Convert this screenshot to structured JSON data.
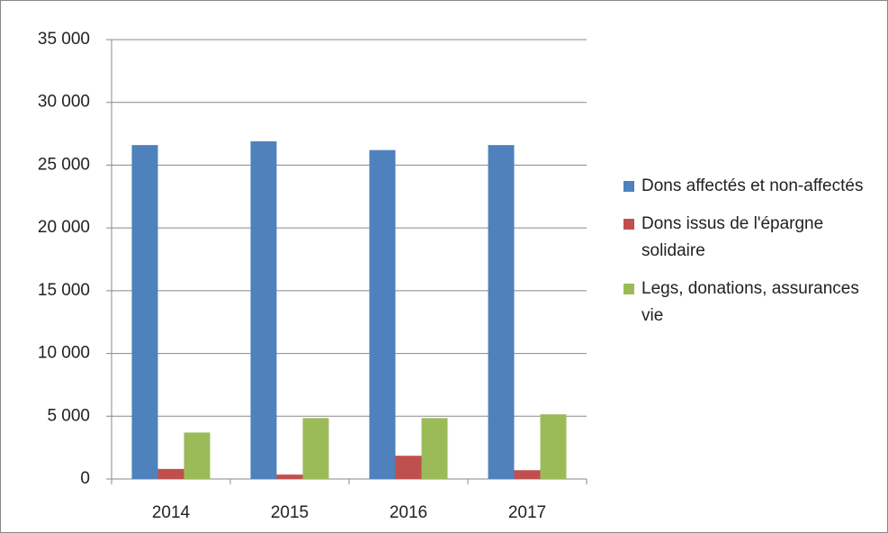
{
  "chart_data": {
    "type": "bar",
    "categories": [
      "2014",
      "2015",
      "2016",
      "2017"
    ],
    "series": [
      {
        "name": "Dons affectés et non-affectés",
        "color": "#4f81bd",
        "values": [
          26600,
          26900,
          26200,
          26600
        ]
      },
      {
        "name": "Dons issus de l'épargne solidaire",
        "color": "#c0504d",
        "values": [
          800,
          350,
          1850,
          700
        ]
      },
      {
        "name": "Legs, donations, assurances vie",
        "color": "#9bbb59",
        "values": [
          3700,
          4850,
          4850,
          5150
        ]
      }
    ],
    "ylim": [
      0,
      35000
    ],
    "yticks": [
      0,
      {
        "value": 5000,
        "label": "5 000"
      },
      {
        "value": 10000,
        "label": "10 000"
      },
      {
        "value": 15000,
        "label": "15 000"
      },
      {
        "value": 20000,
        "label": "20 000"
      },
      {
        "value": 25000,
        "label": "25 000"
      },
      {
        "value": 30000,
        "label": "30 000"
      },
      {
        "value": 35000,
        "label": "35 000"
      }
    ],
    "grid": true,
    "legend": "right"
  }
}
